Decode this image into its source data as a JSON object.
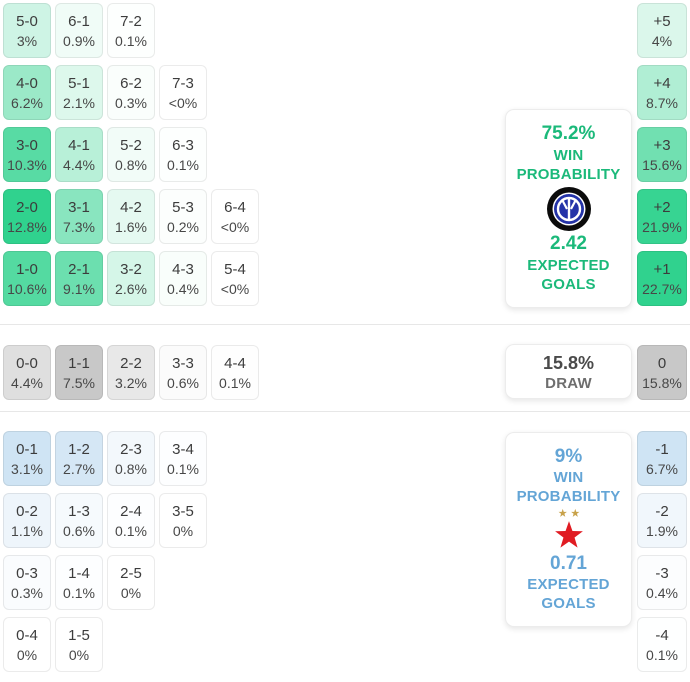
{
  "labels": {
    "win_probability": "WIN PROBABILITY",
    "expected_goals": "EXPECTED GOALS",
    "draw": "DRAW"
  },
  "colors": {
    "home_cell_base": "#30d28e",
    "draw_cell_base": "#c8c8c8",
    "away_cell_base": "#cfe4f4",
    "home_text": "#1bb97a",
    "away_text": "#64a5d6",
    "divider": "#e7e7e7"
  },
  "icons": {
    "home_team": "inter-milan-crest",
    "away_team": "slavia-prague-red-star"
  },
  "chart_data": {
    "type": "heatmap",
    "title": "Correct score and goal difference probability matrix",
    "legend_position": "none",
    "sections": [
      {
        "id": "home",
        "outcome": "home_win",
        "rows": [
          [
            {
              "score": "5-0",
              "pct": "3%",
              "value_pct": 3.0
            },
            {
              "score": "6-1",
              "pct": "0.9%",
              "value_pct": 0.9
            },
            {
              "score": "7-2",
              "pct": "0.1%",
              "value_pct": 0.1
            }
          ],
          [
            {
              "score": "4-0",
              "pct": "6.2%",
              "value_pct": 6.2
            },
            {
              "score": "5-1",
              "pct": "2.1%",
              "value_pct": 2.1
            },
            {
              "score": "6-2",
              "pct": "0.3%",
              "value_pct": 0.3
            },
            {
              "score": "7-3",
              "pct": "<0%",
              "value_pct": 0.0
            }
          ],
          [
            {
              "score": "3-0",
              "pct": "10.3%",
              "value_pct": 10.3
            },
            {
              "score": "4-1",
              "pct": "4.4%",
              "value_pct": 4.4
            },
            {
              "score": "5-2",
              "pct": "0.8%",
              "value_pct": 0.8
            },
            {
              "score": "6-3",
              "pct": "0.1%",
              "value_pct": 0.1
            }
          ],
          [
            {
              "score": "2-0",
              "pct": "12.8%",
              "value_pct": 12.8
            },
            {
              "score": "3-1",
              "pct": "7.3%",
              "value_pct": 7.3
            },
            {
              "score": "4-2",
              "pct": "1.6%",
              "value_pct": 1.6
            },
            {
              "score": "5-3",
              "pct": "0.2%",
              "value_pct": 0.2
            },
            {
              "score": "6-4",
              "pct": "<0%",
              "value_pct": 0.0
            }
          ],
          [
            {
              "score": "1-0",
              "pct": "10.6%",
              "value_pct": 10.6
            },
            {
              "score": "2-1",
              "pct": "9.1%",
              "value_pct": 9.1
            },
            {
              "score": "3-2",
              "pct": "2.6%",
              "value_pct": 2.6
            },
            {
              "score": "4-3",
              "pct": "0.4%",
              "value_pct": 0.4
            },
            {
              "score": "5-4",
              "pct": "<0%",
              "value_pct": 0.0
            }
          ]
        ],
        "margin_cells": [
          {
            "diff": "+5",
            "pct": "4%",
            "value_pct": 4.0
          },
          {
            "diff": "+4",
            "pct": "8.7%",
            "value_pct": 8.7
          },
          {
            "diff": "+3",
            "pct": "15.6%",
            "value_pct": 15.6
          },
          {
            "diff": "+2",
            "pct": "21.9%",
            "value_pct": 21.9
          },
          {
            "diff": "+1",
            "pct": "22.7%",
            "value_pct": 22.7
          }
        ]
      },
      {
        "id": "draw",
        "outcome": "draw",
        "rows": [
          [
            {
              "score": "0-0",
              "pct": "4.4%",
              "value_pct": 4.4
            },
            {
              "score": "1-1",
              "pct": "7.5%",
              "value_pct": 7.5
            },
            {
              "score": "2-2",
              "pct": "3.2%",
              "value_pct": 3.2
            },
            {
              "score": "3-3",
              "pct": "0.6%",
              "value_pct": 0.6
            },
            {
              "score": "4-4",
              "pct": "0.1%",
              "value_pct": 0.1
            }
          ]
        ],
        "margin_cells": [
          {
            "diff": "0",
            "pct": "15.8%",
            "value_pct": 15.8
          }
        ]
      },
      {
        "id": "away",
        "outcome": "away_win",
        "rows": [
          [
            {
              "score": "0-1",
              "pct": "3.1%",
              "value_pct": 3.1
            },
            {
              "score": "1-2",
              "pct": "2.7%",
              "value_pct": 2.7
            },
            {
              "score": "2-3",
              "pct": "0.8%",
              "value_pct": 0.8
            },
            {
              "score": "3-4",
              "pct": "0.1%",
              "value_pct": 0.1
            }
          ],
          [
            {
              "score": "0-2",
              "pct": "1.1%",
              "value_pct": 1.1
            },
            {
              "score": "1-3",
              "pct": "0.6%",
              "value_pct": 0.6
            },
            {
              "score": "2-4",
              "pct": "0.1%",
              "value_pct": 0.1
            },
            {
              "score": "3-5",
              "pct": "0%",
              "value_pct": 0.0
            }
          ],
          [
            {
              "score": "0-3",
              "pct": "0.3%",
              "value_pct": 0.3
            },
            {
              "score": "1-4",
              "pct": "0.1%",
              "value_pct": 0.1
            },
            {
              "score": "2-5",
              "pct": "0%",
              "value_pct": 0.0
            }
          ],
          [
            {
              "score": "0-4",
              "pct": "0%",
              "value_pct": 0.0
            },
            {
              "score": "1-5",
              "pct": "0%",
              "value_pct": 0.0
            }
          ]
        ],
        "margin_cells": [
          {
            "diff": "-1",
            "pct": "6.7%",
            "value_pct": 6.7
          },
          {
            "diff": "-2",
            "pct": "1.9%",
            "value_pct": 1.9
          },
          {
            "diff": "-3",
            "pct": "0.4%",
            "value_pct": 0.4
          },
          {
            "diff": "-4",
            "pct": "0.1%",
            "value_pct": 0.1
          }
        ]
      }
    ],
    "summary": {
      "home": {
        "win_probability": "75.2%",
        "expected_goals": "2.42"
      },
      "draw": {
        "probability": "15.8%"
      },
      "away": {
        "win_probability": "9%",
        "expected_goals": "0.71"
      }
    }
  }
}
